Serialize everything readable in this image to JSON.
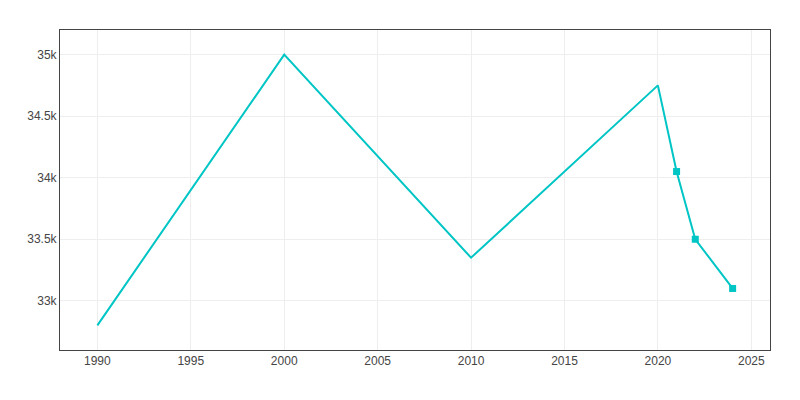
{
  "chart_data": {
    "type": "line",
    "x": [
      1990,
      2000,
      2010,
      2020,
      2021,
      2022,
      2024
    ],
    "series": [
      {
        "type": "line",
        "color": "#00C5C5",
        "values": [
          32800,
          35000,
          33350,
          34750,
          34050,
          33500,
          33100
        ]
      },
      {
        "type": "scatter",
        "marker": "square",
        "color": "#00C5C5",
        "values": [
          null,
          null,
          null,
          null,
          34050,
          33500,
          33100
        ]
      }
    ],
    "xlim": [
      1988,
      2026
    ],
    "ylim": [
      32600,
      35200
    ],
    "xticks": [
      1990,
      1995,
      2000,
      2005,
      2010,
      2015,
      2020,
      2025
    ],
    "yticks": [
      {
        "value": 33000,
        "label": "33k"
      },
      {
        "value": 33500,
        "label": "33.5k"
      },
      {
        "value": 34000,
        "label": "34k"
      },
      {
        "value": 34500,
        "label": "34.5k"
      },
      {
        "value": 35000,
        "label": "35k"
      }
    ],
    "grid": true
  }
}
